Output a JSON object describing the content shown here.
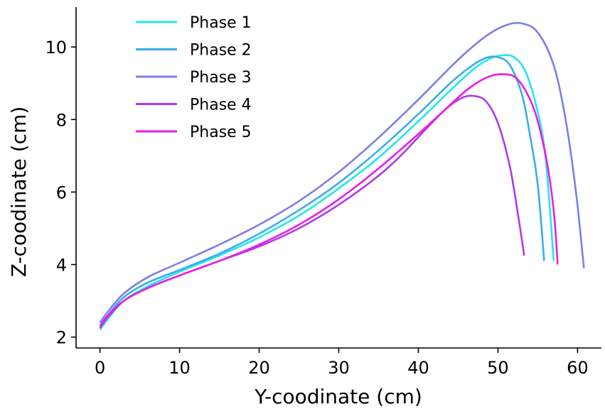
{
  "chart_data": {
    "type": "line",
    "title": "",
    "xlabel": "Y-coodinate (cm)",
    "ylabel": "Z-coodinate (cm)",
    "xlim": [
      -3,
      63
    ],
    "ylim": [
      1.7,
      11.1
    ],
    "xticks": [
      0,
      10,
      20,
      30,
      40,
      50,
      60
    ],
    "yticks": [
      2,
      4,
      6,
      8,
      10
    ],
    "grid": false,
    "legend_position": "top-left",
    "series": [
      {
        "name": "Phase 1",
        "color": "#22e6f0",
        "x": [
          0,
          1,
          3,
          6,
          10,
          15,
          20,
          25,
          30,
          35,
          40,
          44,
          47,
          49,
          50.5,
          52,
          53.5,
          55,
          56,
          57
        ],
        "y": [
          2.2,
          2.5,
          3.0,
          3.4,
          3.8,
          4.25,
          4.75,
          5.35,
          6.1,
          6.95,
          7.95,
          8.8,
          9.4,
          9.68,
          9.77,
          9.72,
          9.3,
          8.2,
          6.9,
          4.1
        ]
      },
      {
        "name": "Phase 2",
        "color": "#3aaee8",
        "x": [
          0,
          1,
          3,
          6,
          10,
          15,
          20,
          25,
          30,
          35,
          40,
          44,
          46.5,
          48.5,
          50,
          51.5,
          53,
          54,
          55,
          55.8
        ],
        "y": [
          2.3,
          2.6,
          3.1,
          3.5,
          3.85,
          4.3,
          4.85,
          5.5,
          6.25,
          7.15,
          8.15,
          9.0,
          9.45,
          9.7,
          9.72,
          9.5,
          8.7,
          7.6,
          6.2,
          4.1
        ]
      },
      {
        "name": "Phase 3",
        "color": "#7e7ee6",
        "x": [
          0,
          1,
          3,
          6,
          10,
          15,
          20,
          25,
          30,
          35,
          40,
          45,
          48.5,
          51,
          53,
          55,
          57,
          58.5,
          59.8,
          60.8
        ],
        "y": [
          2.4,
          2.7,
          3.2,
          3.65,
          4.05,
          4.55,
          5.1,
          5.75,
          6.55,
          7.5,
          8.55,
          9.65,
          10.3,
          10.6,
          10.65,
          10.4,
          9.5,
          8.0,
          6.0,
          3.9
        ]
      },
      {
        "name": "Phase 4",
        "color": "#b03ae8",
        "x": [
          0,
          1,
          3,
          6,
          10,
          15,
          20,
          25,
          30,
          35,
          38,
          41,
          43.5,
          45.5,
          47,
          48.5,
          50,
          51.5,
          52.5,
          53.3
        ],
        "y": [
          2.25,
          2.55,
          3.0,
          3.35,
          3.7,
          4.1,
          4.5,
          5.0,
          5.65,
          6.45,
          7.05,
          7.75,
          8.3,
          8.6,
          8.65,
          8.5,
          7.9,
          6.7,
          5.4,
          4.25
        ]
      },
      {
        "name": "Phase 5",
        "color": "#e81ee6",
        "x": [
          0,
          1,
          3,
          6,
          10,
          15,
          20,
          25,
          30,
          35,
          40,
          43,
          46,
          48.5,
          50.5,
          52.5,
          54.5,
          56,
          57,
          57.5
        ],
        "y": [
          2.3,
          2.6,
          3.0,
          3.35,
          3.7,
          4.1,
          4.55,
          5.1,
          5.8,
          6.65,
          7.6,
          8.2,
          8.8,
          9.15,
          9.25,
          9.1,
          8.3,
          7.0,
          5.5,
          4.0
        ]
      }
    ]
  }
}
